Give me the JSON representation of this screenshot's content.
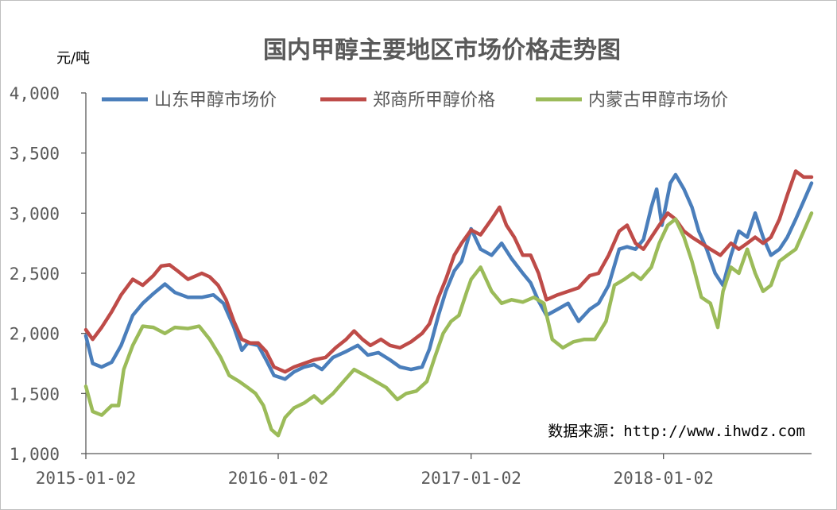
{
  "chart_data": {
    "type": "line",
    "title": "国内甲醇主要地区市场价格走势图",
    "ylabel": "元/吨",
    "xlabel": "",
    "ylim": [
      1000,
      4000
    ],
    "yticks": [
      1000,
      1500,
      2000,
      2500,
      3000,
      3500,
      4000
    ],
    "ytick_labels": [
      "1,000",
      "1,500",
      "2,000",
      "2,500",
      "3,000",
      "3,500",
      "4,000"
    ],
    "xlim": [
      "2015-01-02",
      "2018-10-10"
    ],
    "xticks": [
      "2015-01-02",
      "2016-01-02",
      "2017-01-02",
      "2018-01-02"
    ],
    "grid": false,
    "legend_position": "top",
    "source_note": "数据来源：http://www.ihwdz.com",
    "series": [
      {
        "name": "山东甲醇市场价",
        "color": "#4a7ebb",
        "points": [
          [
            "2015-01-02",
            1980
          ],
          [
            "2015-01-15",
            1750
          ],
          [
            "2015-02-01",
            1720
          ],
          [
            "2015-02-20",
            1760
          ],
          [
            "2015-03-10",
            1900
          ],
          [
            "2015-04-01",
            2150
          ],
          [
            "2015-04-20",
            2250
          ],
          [
            "2015-05-10",
            2330
          ],
          [
            "2015-06-01",
            2410
          ],
          [
            "2015-06-20",
            2340
          ],
          [
            "2015-07-15",
            2300
          ],
          [
            "2015-08-10",
            2300
          ],
          [
            "2015-09-01",
            2320
          ],
          [
            "2015-09-20",
            2250
          ],
          [
            "2015-10-10",
            2050
          ],
          [
            "2015-10-25",
            1860
          ],
          [
            "2015-11-05",
            1920
          ],
          [
            "2015-11-25",
            1900
          ],
          [
            "2015-12-10",
            1780
          ],
          [
            "2015-12-25",
            1650
          ],
          [
            "2016-01-15",
            1620
          ],
          [
            "2016-02-01",
            1680
          ],
          [
            "2016-02-20",
            1720
          ],
          [
            "2016-03-10",
            1740
          ],
          [
            "2016-03-25",
            1700
          ],
          [
            "2016-04-15",
            1800
          ],
          [
            "2016-05-10",
            1850
          ],
          [
            "2016-06-01",
            1900
          ],
          [
            "2016-06-20",
            1820
          ],
          [
            "2016-07-10",
            1840
          ],
          [
            "2016-08-01",
            1780
          ],
          [
            "2016-08-20",
            1720
          ],
          [
            "2016-09-10",
            1700
          ],
          [
            "2016-10-01",
            1720
          ],
          [
            "2016-10-15",
            1870
          ],
          [
            "2016-11-01",
            2150
          ],
          [
            "2016-11-15",
            2350
          ],
          [
            "2016-12-01",
            2520
          ],
          [
            "2016-12-15",
            2600
          ],
          [
            "2017-01-02",
            2870
          ],
          [
            "2017-01-20",
            2700
          ],
          [
            "2017-02-10",
            2650
          ],
          [
            "2017-03-01",
            2750
          ],
          [
            "2017-03-20",
            2620
          ],
          [
            "2017-04-10",
            2500
          ],
          [
            "2017-04-25",
            2420
          ],
          [
            "2017-05-10",
            2270
          ],
          [
            "2017-05-25",
            2150
          ],
          [
            "2017-06-15",
            2200
          ],
          [
            "2017-07-05",
            2250
          ],
          [
            "2017-07-25",
            2100
          ],
          [
            "2017-08-15",
            2200
          ],
          [
            "2017-09-01",
            2250
          ],
          [
            "2017-09-20",
            2400
          ],
          [
            "2017-10-10",
            2700
          ],
          [
            "2017-10-25",
            2720
          ],
          [
            "2017-11-10",
            2700
          ],
          [
            "2017-11-25",
            2780
          ],
          [
            "2017-12-10",
            3050
          ],
          [
            "2017-12-20",
            3200
          ],
          [
            "2017-12-30",
            2900
          ],
          [
            "2018-01-15",
            3250
          ],
          [
            "2018-01-25",
            3320
          ],
          [
            "2018-02-10",
            3200
          ],
          [
            "2018-02-25",
            3050
          ],
          [
            "2018-03-10",
            2850
          ],
          [
            "2018-03-25",
            2700
          ],
          [
            "2018-04-10",
            2500
          ],
          [
            "2018-04-25",
            2400
          ],
          [
            "2018-05-10",
            2650
          ],
          [
            "2018-05-25",
            2850
          ],
          [
            "2018-06-10",
            2800
          ],
          [
            "2018-06-25",
            3000
          ],
          [
            "2018-07-10",
            2800
          ],
          [
            "2018-07-25",
            2650
          ],
          [
            "2018-08-10",
            2700
          ],
          [
            "2018-08-25",
            2800
          ],
          [
            "2018-09-10",
            2950
          ],
          [
            "2018-09-25",
            3100
          ],
          [
            "2018-10-10",
            3250
          ]
        ]
      },
      {
        "name": "郑商所甲醇价格",
        "color": "#be4b48",
        "points": [
          [
            "2015-01-02",
            2030
          ],
          [
            "2015-01-15",
            1950
          ],
          [
            "2015-02-01",
            2050
          ],
          [
            "2015-02-20",
            2180
          ],
          [
            "2015-03-10",
            2320
          ],
          [
            "2015-04-01",
            2450
          ],
          [
            "2015-04-20",
            2400
          ],
          [
            "2015-05-10",
            2480
          ],
          [
            "2015-05-25",
            2560
          ],
          [
            "2015-06-10",
            2570
          ],
          [
            "2015-06-25",
            2520
          ],
          [
            "2015-07-15",
            2450
          ],
          [
            "2015-08-10",
            2500
          ],
          [
            "2015-08-25",
            2470
          ],
          [
            "2015-09-10",
            2400
          ],
          [
            "2015-09-25",
            2280
          ],
          [
            "2015-10-10",
            2100
          ],
          [
            "2015-10-25",
            1950
          ],
          [
            "2015-11-10",
            1920
          ],
          [
            "2015-11-25",
            1920
          ],
          [
            "2015-12-10",
            1850
          ],
          [
            "2015-12-25",
            1720
          ],
          [
            "2016-01-15",
            1680
          ],
          [
            "2016-02-01",
            1720
          ],
          [
            "2016-02-20",
            1750
          ],
          [
            "2016-03-10",
            1780
          ],
          [
            "2016-04-01",
            1800
          ],
          [
            "2016-04-20",
            1880
          ],
          [
            "2016-05-10",
            1950
          ],
          [
            "2016-05-25",
            2020
          ],
          [
            "2016-06-10",
            1950
          ],
          [
            "2016-06-25",
            1900
          ],
          [
            "2016-07-15",
            1950
          ],
          [
            "2016-08-01",
            1900
          ],
          [
            "2016-08-20",
            1880
          ],
          [
            "2016-09-10",
            1930
          ],
          [
            "2016-10-01",
            2000
          ],
          [
            "2016-10-15",
            2080
          ],
          [
            "2016-11-01",
            2300
          ],
          [
            "2016-11-15",
            2450
          ],
          [
            "2016-12-01",
            2650
          ],
          [
            "2016-12-15",
            2750
          ],
          [
            "2017-01-02",
            2860
          ],
          [
            "2017-01-20",
            2820
          ],
          [
            "2017-02-10",
            2950
          ],
          [
            "2017-02-25",
            3050
          ],
          [
            "2017-03-10",
            2900
          ],
          [
            "2017-03-25",
            2800
          ],
          [
            "2017-04-10",
            2650
          ],
          [
            "2017-04-25",
            2650
          ],
          [
            "2017-05-10",
            2500
          ],
          [
            "2017-05-25",
            2280
          ],
          [
            "2017-06-15",
            2320
          ],
          [
            "2017-07-05",
            2350
          ],
          [
            "2017-07-25",
            2380
          ],
          [
            "2017-08-15",
            2480
          ],
          [
            "2017-09-01",
            2500
          ],
          [
            "2017-09-20",
            2650
          ],
          [
            "2017-10-10",
            2850
          ],
          [
            "2017-10-25",
            2900
          ],
          [
            "2017-11-10",
            2750
          ],
          [
            "2017-11-25",
            2700
          ],
          [
            "2017-12-10",
            2800
          ],
          [
            "2017-12-25",
            2900
          ],
          [
            "2018-01-10",
            3000
          ],
          [
            "2018-01-25",
            2950
          ],
          [
            "2018-02-10",
            2850
          ],
          [
            "2018-02-25",
            2800
          ],
          [
            "2018-03-15",
            2750
          ],
          [
            "2018-04-01",
            2700
          ],
          [
            "2018-04-20",
            2650
          ],
          [
            "2018-05-10",
            2750
          ],
          [
            "2018-05-25",
            2700
          ],
          [
            "2018-06-10",
            2750
          ],
          [
            "2018-06-25",
            2800
          ],
          [
            "2018-07-10",
            2750
          ],
          [
            "2018-07-25",
            2800
          ],
          [
            "2018-08-10",
            2950
          ],
          [
            "2018-08-25",
            3150
          ],
          [
            "2018-09-10",
            3350
          ],
          [
            "2018-09-25",
            3300
          ],
          [
            "2018-10-10",
            3300
          ]
        ]
      },
      {
        "name": "内蒙古甲醇市场价",
        "color": "#9bbb59",
        "points": [
          [
            "2015-01-02",
            1560
          ],
          [
            "2015-01-15",
            1350
          ],
          [
            "2015-02-01",
            1320
          ],
          [
            "2015-02-20",
            1400
          ],
          [
            "2015-03-05",
            1400
          ],
          [
            "2015-03-15",
            1700
          ],
          [
            "2015-04-01",
            1900
          ],
          [
            "2015-04-20",
            2060
          ],
          [
            "2015-05-10",
            2050
          ],
          [
            "2015-06-01",
            2000
          ],
          [
            "2015-06-20",
            2050
          ],
          [
            "2015-07-15",
            2040
          ],
          [
            "2015-08-05",
            2060
          ],
          [
            "2015-08-25",
            1950
          ],
          [
            "2015-09-15",
            1800
          ],
          [
            "2015-10-01",
            1650
          ],
          [
            "2015-10-20",
            1600
          ],
          [
            "2015-11-05",
            1550
          ],
          [
            "2015-11-20",
            1500
          ],
          [
            "2015-12-05",
            1400
          ],
          [
            "2015-12-20",
            1200
          ],
          [
            "2016-01-02",
            1150
          ],
          [
            "2016-01-15",
            1300
          ],
          [
            "2016-02-01",
            1380
          ],
          [
            "2016-02-20",
            1420
          ],
          [
            "2016-03-10",
            1480
          ],
          [
            "2016-03-25",
            1420
          ],
          [
            "2016-04-15",
            1500
          ],
          [
            "2016-05-05",
            1600
          ],
          [
            "2016-05-25",
            1700
          ],
          [
            "2016-06-15",
            1650
          ],
          [
            "2016-07-05",
            1600
          ],
          [
            "2016-07-25",
            1550
          ],
          [
            "2016-08-15",
            1450
          ],
          [
            "2016-09-01",
            1500
          ],
          [
            "2016-09-20",
            1520
          ],
          [
            "2016-10-10",
            1600
          ],
          [
            "2016-10-25",
            1800
          ],
          [
            "2016-11-10",
            2000
          ],
          [
            "2016-11-25",
            2100
          ],
          [
            "2016-12-10",
            2150
          ],
          [
            "2016-12-25",
            2350
          ],
          [
            "2017-01-02",
            2450
          ],
          [
            "2017-01-20",
            2550
          ],
          [
            "2017-02-10",
            2350
          ],
          [
            "2017-03-01",
            2250
          ],
          [
            "2017-03-20",
            2280
          ],
          [
            "2017-04-10",
            2260
          ],
          [
            "2017-05-01",
            2300
          ],
          [
            "2017-05-20",
            2250
          ],
          [
            "2017-06-05",
            1950
          ],
          [
            "2017-06-25",
            1880
          ],
          [
            "2017-07-15",
            1930
          ],
          [
            "2017-08-05",
            1950
          ],
          [
            "2017-08-25",
            1950
          ],
          [
            "2017-09-15",
            2100
          ],
          [
            "2017-10-01",
            2400
          ],
          [
            "2017-10-20",
            2450
          ],
          [
            "2017-11-05",
            2500
          ],
          [
            "2017-11-20",
            2450
          ],
          [
            "2017-12-10",
            2550
          ],
          [
            "2017-12-25",
            2750
          ],
          [
            "2018-01-10",
            2900
          ],
          [
            "2018-01-25",
            2950
          ],
          [
            "2018-02-10",
            2800
          ],
          [
            "2018-02-25",
            2600
          ],
          [
            "2018-03-15",
            2300
          ],
          [
            "2018-04-01",
            2250
          ],
          [
            "2018-04-15",
            2050
          ],
          [
            "2018-04-25",
            2350
          ],
          [
            "2018-05-10",
            2550
          ],
          [
            "2018-05-25",
            2500
          ],
          [
            "2018-06-10",
            2700
          ],
          [
            "2018-06-25",
            2500
          ],
          [
            "2018-07-10",
            2350
          ],
          [
            "2018-07-25",
            2400
          ],
          [
            "2018-08-10",
            2600
          ],
          [
            "2018-08-25",
            2650
          ],
          [
            "2018-09-10",
            2700
          ],
          [
            "2018-09-25",
            2850
          ],
          [
            "2018-10-10",
            3000
          ]
        ]
      }
    ]
  }
}
